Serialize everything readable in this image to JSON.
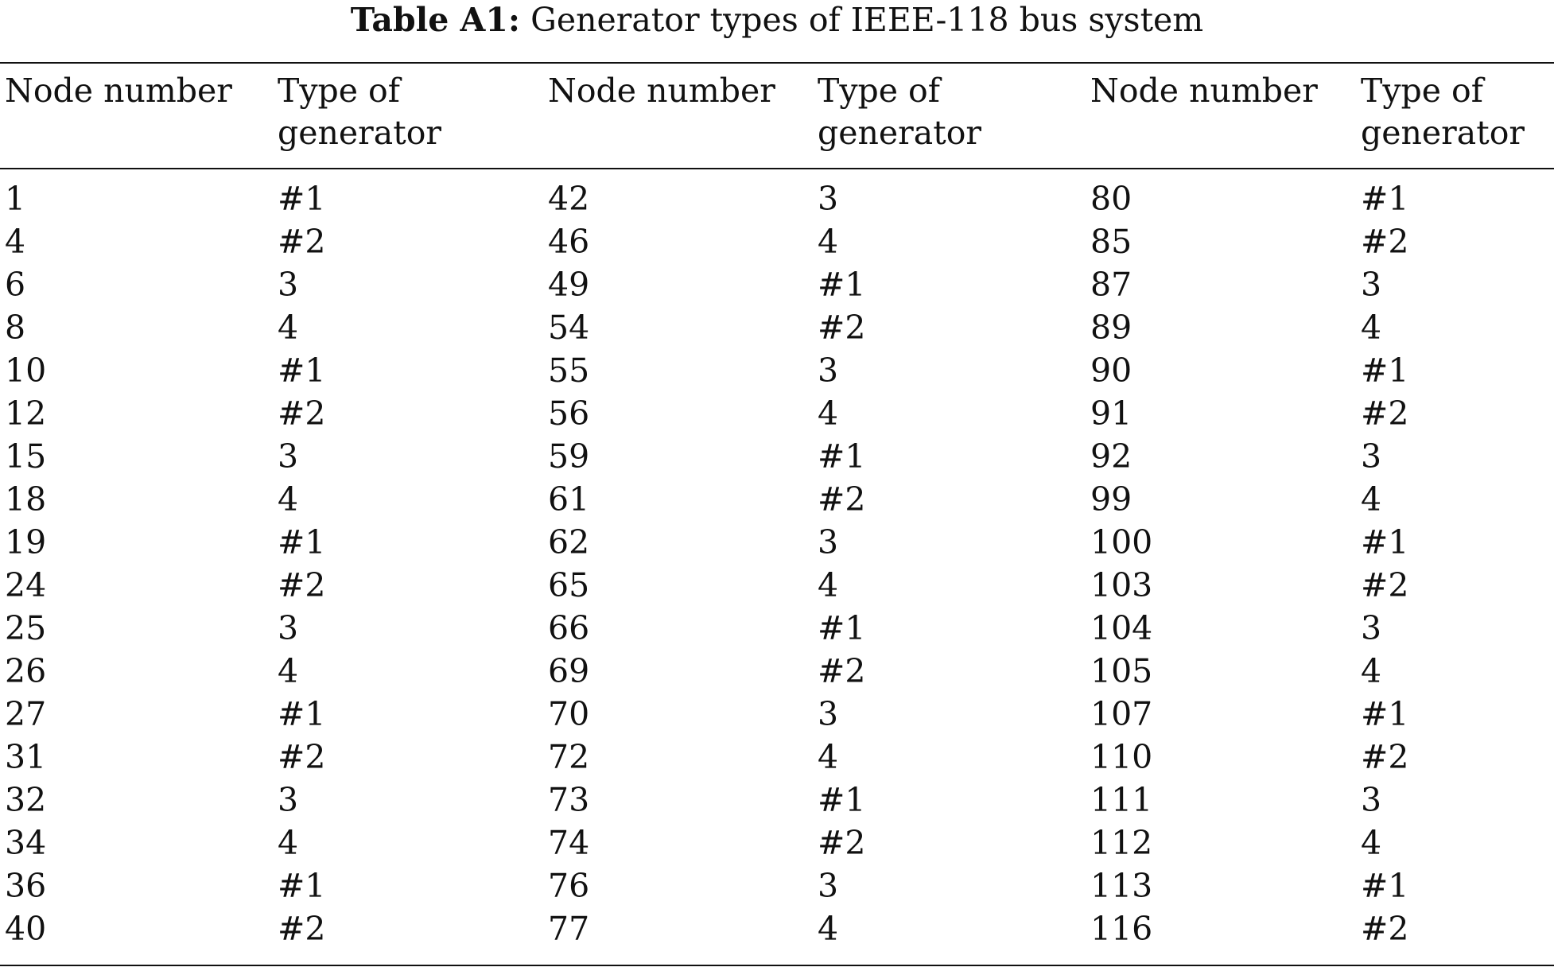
{
  "caption": {
    "label": "Table A1:",
    "text": "Generator types of IEEE-118 bus system"
  },
  "table": {
    "headers": [
      "Node number",
      "Type of generator",
      "Node number",
      "Type of generator",
      "Node number",
      "Type of generator"
    ],
    "rows": [
      [
        "1",
        "#1",
        "42",
        "3",
        "80",
        "#1"
      ],
      [
        "4",
        "#2",
        "46",
        "4",
        "85",
        "#2"
      ],
      [
        "6",
        "3",
        "49",
        "#1",
        "87",
        "3"
      ],
      [
        "8",
        "4",
        "54",
        "#2",
        "89",
        "4"
      ],
      [
        "10",
        "#1",
        "55",
        "3",
        "90",
        "#1"
      ],
      [
        "12",
        "#2",
        "56",
        "4",
        "91",
        "#2"
      ],
      [
        "15",
        "3",
        "59",
        "#1",
        "92",
        "3"
      ],
      [
        "18",
        "4",
        "61",
        "#2",
        "99",
        "4"
      ],
      [
        "19",
        "#1",
        "62",
        "3",
        "100",
        "#1"
      ],
      [
        "24",
        "#2",
        "65",
        "4",
        "103",
        "#2"
      ],
      [
        "25",
        "3",
        "66",
        "#1",
        "104",
        "3"
      ],
      [
        "26",
        "4",
        "69",
        "#2",
        "105",
        "4"
      ],
      [
        "27",
        "#1",
        "70",
        "3",
        "107",
        "#1"
      ],
      [
        "31",
        "#2",
        "72",
        "4",
        "110",
        "#2"
      ],
      [
        "32",
        "3",
        "73",
        "#1",
        "111",
        "3"
      ],
      [
        "34",
        "4",
        "74",
        "#2",
        "112",
        "4"
      ],
      [
        "36",
        "#1",
        "76",
        "3",
        "113",
        "#1"
      ],
      [
        "40",
        "#2",
        "77",
        "4",
        "116",
        "#2"
      ]
    ]
  }
}
